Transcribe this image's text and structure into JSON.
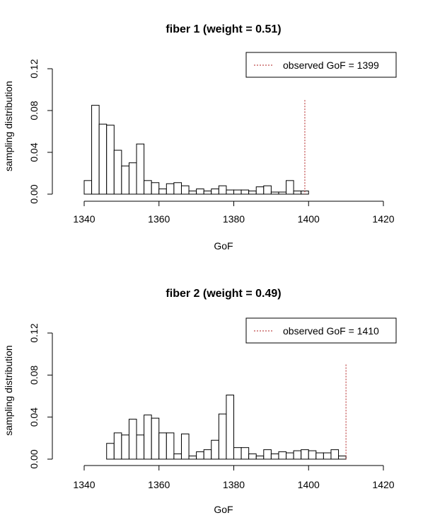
{
  "chart_data": [
    {
      "type": "bar",
      "title": "fiber 1 (weight = 0.51)",
      "xlabel": "GoF",
      "ylabel": "sampling distribution",
      "xlim": [
        1340,
        1420
      ],
      "ylim": [
        0,
        0.12
      ],
      "xticks": [
        "1340",
        "1360",
        "1380",
        "1400",
        "1420"
      ],
      "yticks": [
        "0.00",
        "0.04",
        "0.08",
        "0.12"
      ],
      "bin_width": 2,
      "bin_start": 1340,
      "values": [
        0.013,
        0.085,
        0.067,
        0.066,
        0.042,
        0.027,
        0.03,
        0.048,
        0.013,
        0.011,
        0.005,
        0.01,
        0.011,
        0.008,
        0.003,
        0.005,
        0.003,
        0.005,
        0.008,
        0.004,
        0.004,
        0.004,
        0.003,
        0.007,
        0.008,
        0.002,
        0.002,
        0.013,
        0.003,
        0.003
      ],
      "legend": {
        "position": "top-right",
        "entries": [
          "observed GoF = 1399"
        ]
      },
      "observed": {
        "value": 1399,
        "color": "#b22222"
      }
    },
    {
      "type": "bar",
      "title": "fiber 2 (weight = 0.49)",
      "xlabel": "GoF",
      "ylabel": "sampling distribution",
      "xlim": [
        1340,
        1420
      ],
      "ylim": [
        0,
        0.12
      ],
      "xticks": [
        "1340",
        "1360",
        "1380",
        "1400",
        "1420"
      ],
      "yticks": [
        "0.00",
        "0.04",
        "0.08",
        "0.12"
      ],
      "bin_width": 2,
      "bin_start": 1346,
      "values": [
        0.015,
        0.025,
        0.023,
        0.038,
        0.023,
        0.042,
        0.039,
        0.025,
        0.025,
        0.005,
        0.024,
        0.003,
        0.007,
        0.009,
        0.018,
        0.043,
        0.061,
        0.011,
        0.011,
        0.005,
        0.003,
        0.009,
        0.005,
        0.007,
        0.006,
        0.008,
        0.009,
        0.008,
        0.006,
        0.006,
        0.009,
        0.003
      ],
      "legend": {
        "position": "top-right",
        "entries": [
          "observed GoF = 1410"
        ]
      },
      "observed": {
        "value": 1410,
        "color": "#b22222"
      }
    }
  ]
}
